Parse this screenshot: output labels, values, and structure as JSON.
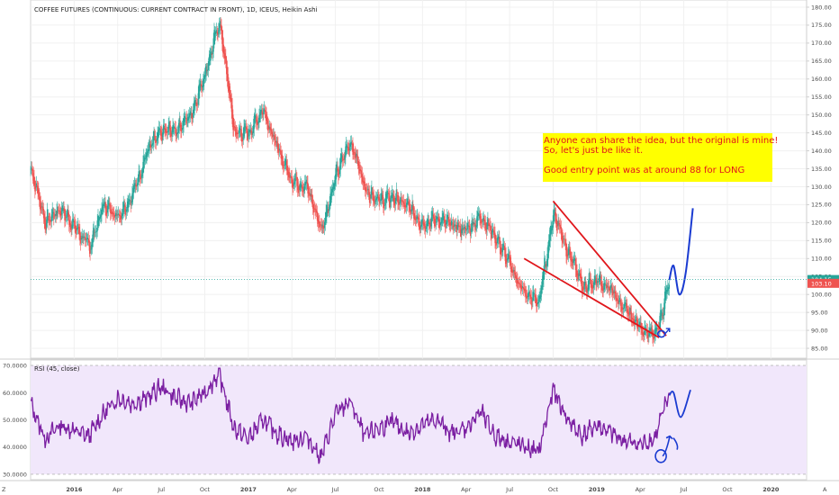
{
  "main_panel": {
    "title": "COFFEE FUTURES (CONTINUOUS: CURRENT CONTRACT IN FRONT), 1D, ICEUS, Heikin Ashi",
    "last_price_label": "104.15",
    "prev_price_label": "103.10",
    "annotation": {
      "lines": [
        "Anyone can share the idea, but the original is mine!",
        "So, let's just be like it.",
        "",
        "Good entry point was at around 88 for LONG"
      ]
    }
  },
  "rsi_panel": {
    "title": "RSI (45, close)"
  },
  "footer": {
    "scale_mode_label": "Z",
    "auto_scale_label": "A"
  },
  "colors": {
    "up": "#26a69a",
    "down": "#ef5350",
    "rsi_line": "#7b1fa2",
    "rsi_band": "#f1e7fb",
    "trend_lines": "#e0161b",
    "projection": "#1a3bd1",
    "annotation_bg": "#ffff00",
    "price_line": "#26a69a",
    "prev_label_bg": "#ef5350"
  },
  "chart_data": [
    {
      "type": "candlestick",
      "title": "COFFEE FUTURES (CONTINUOUS: CURRENT CONTRACT IN FRONT), 1D, ICEUS, Heikin Ashi",
      "ylim": [
        85,
        180
      ],
      "y_ticks": [
        "85.00",
        "90.00",
        "95.00",
        "100.00",
        "105.00",
        "110.00",
        "115.00",
        "120.00",
        "125.00",
        "130.00",
        "135.00",
        "140.00",
        "145.00",
        "150.00",
        "155.00",
        "160.00",
        "165.00",
        "170.00",
        "175.00",
        "180.00"
      ],
      "x_ticks": [
        "2016",
        "Apr",
        "Jul",
        "Oct",
        "2017",
        "Apr",
        "Jul",
        "Oct",
        "2018",
        "Apr",
        "Jul",
        "Oct",
        "2019",
        "Apr",
        "Jul",
        "Oct",
        "2020"
      ],
      "x_tick_dates": [
        "2016-01",
        "2016-04",
        "2016-07",
        "2016-10",
        "2017-01",
        "2017-04",
        "2017-07",
        "2017-10",
        "2018-01",
        "2018-04",
        "2018-07",
        "2018-10",
        "2019-01",
        "2019-04",
        "2019-07",
        "2019-10",
        "2020-01"
      ],
      "price_path": [
        {
          "date": "2015-10",
          "close": 135
        },
        {
          "date": "2015-11",
          "close": 120
        },
        {
          "date": "2015-12",
          "close": 124
        },
        {
          "date": "2016-01",
          "close": 119
        },
        {
          "date": "2016-02",
          "close": 113
        },
        {
          "date": "2016-03",
          "close": 125
        },
        {
          "date": "2016-04",
          "close": 122
        },
        {
          "date": "2016-05",
          "close": 128
        },
        {
          "date": "2016-06",
          "close": 140
        },
        {
          "date": "2016-07",
          "close": 145
        },
        {
          "date": "2016-08",
          "close": 146
        },
        {
          "date": "2016-09",
          "close": 150
        },
        {
          "date": "2016-10",
          "close": 162
        },
        {
          "date": "2016-11",
          "close": 176
        },
        {
          "date": "2016-12",
          "close": 145
        },
        {
          "date": "2017-01",
          "close": 145
        },
        {
          "date": "2017-02",
          "close": 152
        },
        {
          "date": "2017-03",
          "close": 140
        },
        {
          "date": "2017-04",
          "close": 132
        },
        {
          "date": "2017-05",
          "close": 130
        },
        {
          "date": "2017-06",
          "close": 118
        },
        {
          "date": "2017-07",
          "close": 133
        },
        {
          "date": "2017-08",
          "close": 143
        },
        {
          "date": "2017-09",
          "close": 130
        },
        {
          "date": "2017-10",
          "close": 126
        },
        {
          "date": "2017-11",
          "close": 127
        },
        {
          "date": "2017-12",
          "close": 124
        },
        {
          "date": "2018-01",
          "close": 120
        },
        {
          "date": "2018-02",
          "close": 121
        },
        {
          "date": "2018-03",
          "close": 119
        },
        {
          "date": "2018-04",
          "close": 118
        },
        {
          "date": "2018-05",
          "close": 122
        },
        {
          "date": "2018-06",
          "close": 116
        },
        {
          "date": "2018-07",
          "close": 108
        },
        {
          "date": "2018-08",
          "close": 100
        },
        {
          "date": "2018-09",
          "close": 98
        },
        {
          "date": "2018-10",
          "close": 123
        },
        {
          "date": "2018-11",
          "close": 112
        },
        {
          "date": "2018-12",
          "close": 102
        },
        {
          "date": "2019-01",
          "close": 104
        },
        {
          "date": "2019-02",
          "close": 101
        },
        {
          "date": "2019-03",
          "close": 95
        },
        {
          "date": "2019-04",
          "close": 91
        },
        {
          "date": "2019-05",
          "close": 88
        },
        {
          "date": "2019-06",
          "close": 104
        }
      ],
      "last_price": 104.15,
      "prev_price": 103.1,
      "drawings": {
        "upper_trendline": [
          {
            "date": "2018-10-01",
            "price": 126
          },
          {
            "date": "2019-05-25",
            "price": 88.5
          }
        ],
        "lower_trendline": [
          {
            "date": "2018-08-01",
            "price": 110
          },
          {
            "date": "2019-05-10",
            "price": 88
          }
        ],
        "projection_curve": [
          {
            "date": "2019-06-01",
            "price": 104
          },
          {
            "date": "2019-06-10",
            "price": 108
          },
          {
            "date": "2019-06-22",
            "price": 100
          },
          {
            "date": "2019-07-05",
            "price": 106
          },
          {
            "date": "2019-07-20",
            "price": 124
          }
        ],
        "entry_circle": {
          "date": "2019-05-15",
          "price": 89
        }
      }
    },
    {
      "type": "line",
      "title": "RSI (45, close)",
      "ylim": [
        30,
        70
      ],
      "y_ticks": [
        "30.0000",
        "40.0000",
        "50.0000",
        "60.0000",
        "70.0000"
      ],
      "band": [
        30,
        70
      ],
      "rsi_path": [
        {
          "date": "2015-10",
          "value": 56
        },
        {
          "date": "2015-11",
          "value": 43
        },
        {
          "date": "2015-12",
          "value": 48
        },
        {
          "date": "2016-01",
          "value": 46
        },
        {
          "date": "2016-02",
          "value": 44
        },
        {
          "date": "2016-03",
          "value": 52
        },
        {
          "date": "2016-04",
          "value": 58
        },
        {
          "date": "2016-05",
          "value": 56
        },
        {
          "date": "2016-06",
          "value": 58
        },
        {
          "date": "2016-07",
          "value": 62
        },
        {
          "date": "2016-08",
          "value": 58
        },
        {
          "date": "2016-09",
          "value": 56
        },
        {
          "date": "2016-10",
          "value": 60
        },
        {
          "date": "2016-11",
          "value": 67
        },
        {
          "date": "2016-12",
          "value": 47
        },
        {
          "date": "2017-01",
          "value": 43
        },
        {
          "date": "2017-02",
          "value": 50
        },
        {
          "date": "2017-03",
          "value": 45
        },
        {
          "date": "2017-04",
          "value": 42
        },
        {
          "date": "2017-05",
          "value": 44
        },
        {
          "date": "2017-06",
          "value": 36
        },
        {
          "date": "2017-07",
          "value": 52
        },
        {
          "date": "2017-08",
          "value": 57
        },
        {
          "date": "2017-09",
          "value": 44
        },
        {
          "date": "2017-10",
          "value": 47
        },
        {
          "date": "2017-11",
          "value": 49
        },
        {
          "date": "2017-12",
          "value": 45
        },
        {
          "date": "2018-01",
          "value": 48
        },
        {
          "date": "2018-02",
          "value": 50
        },
        {
          "date": "2018-03",
          "value": 45
        },
        {
          "date": "2018-04",
          "value": 47
        },
        {
          "date": "2018-05",
          "value": 53
        },
        {
          "date": "2018-06",
          "value": 44
        },
        {
          "date": "2018-07",
          "value": 42
        },
        {
          "date": "2018-08",
          "value": 40
        },
        {
          "date": "2018-09",
          "value": 38
        },
        {
          "date": "2018-10",
          "value": 61
        },
        {
          "date": "2018-11",
          "value": 50
        },
        {
          "date": "2018-12",
          "value": 44
        },
        {
          "date": "2019-01",
          "value": 48
        },
        {
          "date": "2019-02",
          "value": 45
        },
        {
          "date": "2019-03",
          "value": 42
        },
        {
          "date": "2019-04",
          "value": 41
        },
        {
          "date": "2019-05",
          "value": 43
        },
        {
          "date": "2019-06",
          "value": 60
        }
      ],
      "drawings": {
        "projection_curve": [
          {
            "date": "2019-06-01",
            "value": 59
          },
          {
            "date": "2019-06-10",
            "value": 60
          },
          {
            "date": "2019-06-25",
            "value": 51
          },
          {
            "date": "2019-07-15",
            "value": 61
          }
        ],
        "arrow": [
          {
            "date": "2019-05-10",
            "value": 36
          },
          {
            "date": "2019-05-25",
            "value": 44
          }
        ]
      }
    }
  ]
}
